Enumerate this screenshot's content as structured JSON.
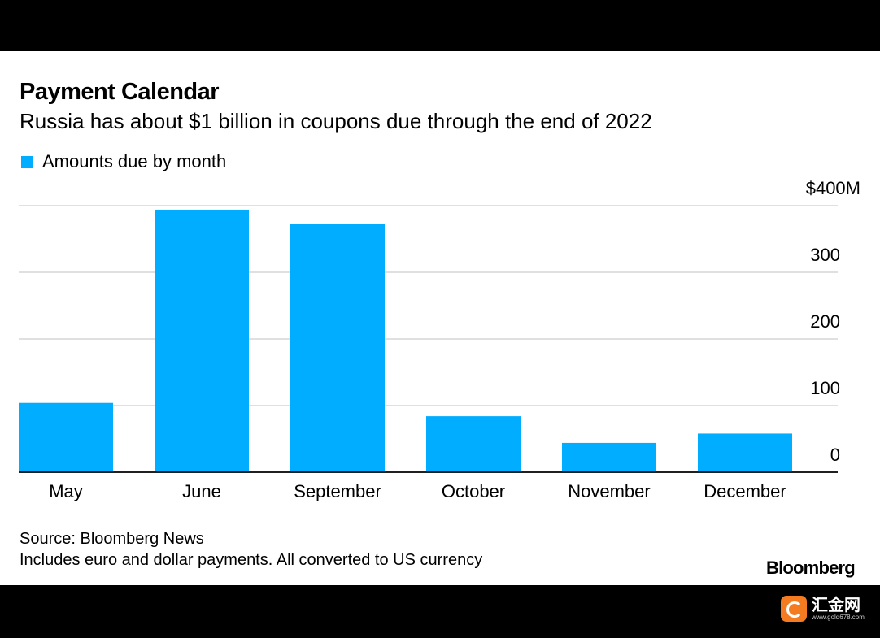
{
  "chart_data": {
    "type": "bar",
    "title": "Payment Calendar",
    "subtitle": "Russia has about $1 billion in coupons due through the end of 2022",
    "categories": [
      "May",
      "June",
      "September",
      "October",
      "November",
      "December"
    ],
    "series": [
      {
        "name": "Amounts due by month",
        "values": [
          104,
          394,
          372,
          84,
          44,
          58
        ]
      }
    ],
    "ylim": [
      0,
      400
    ],
    "yticks": [
      0,
      100,
      200,
      300,
      400
    ],
    "ytick_labels": [
      "0",
      "100",
      "200",
      "300",
      "$400M"
    ],
    "xlabel": "",
    "ylabel": "",
    "grid": true,
    "y_axis_side": "right",
    "legend_placement": "top-left",
    "bar_color": "#00adff",
    "source": "Source: Bloomberg News",
    "note": "Includes euro and dollar payments. All converted to US currency"
  },
  "brand": "Bloomberg",
  "watermark": {
    "name": "汇金网",
    "url": "www.gold678.com"
  }
}
